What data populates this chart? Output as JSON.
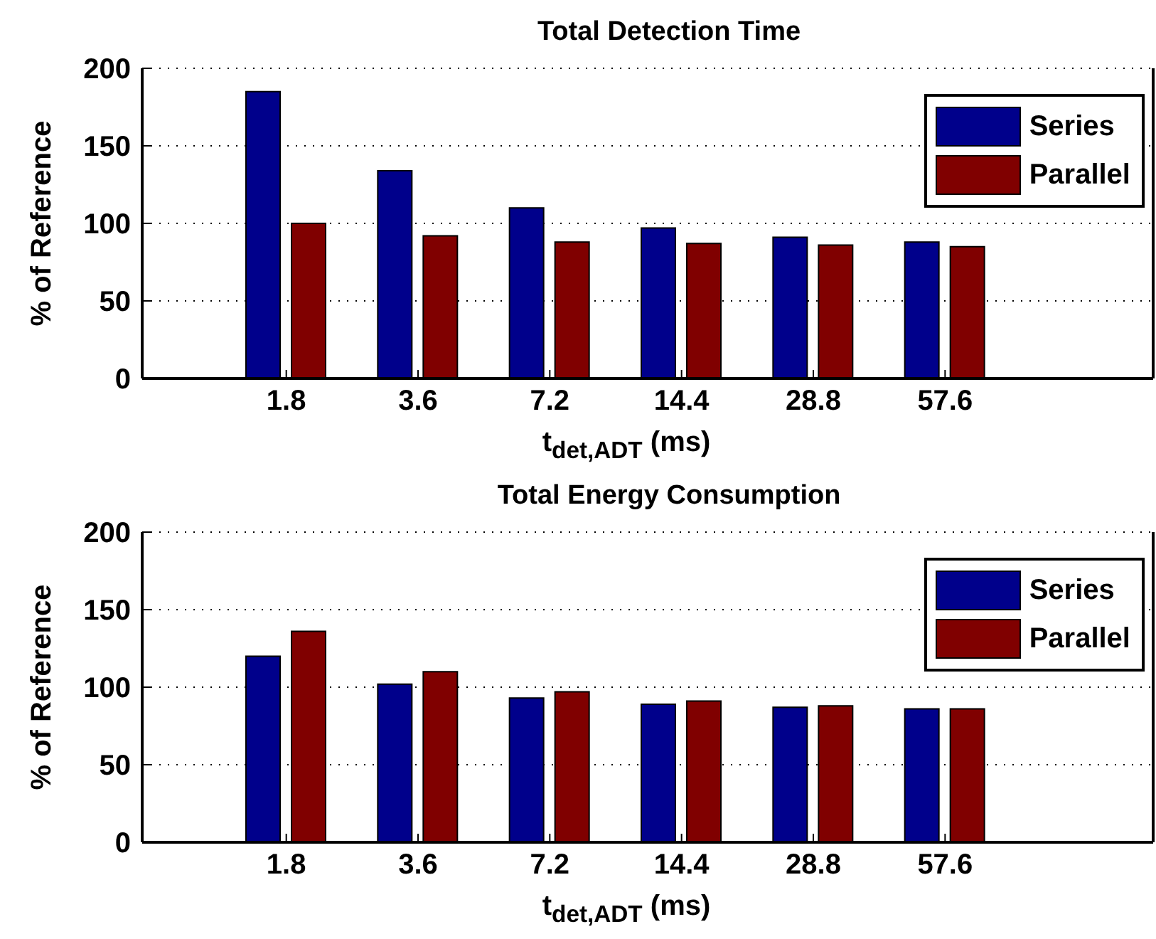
{
  "chart_data": [
    {
      "type": "bar",
      "title": "Total Detection Time",
      "xlabel": "t$_{det,ADT}$ (ms)",
      "ylabel": "% of Reference",
      "categories": [
        "1.8",
        "3.6",
        "7.2",
        "14.4",
        "28.8",
        "57.6"
      ],
      "series": [
        {
          "name": "Series",
          "color": "#00008b",
          "values": [
            185,
            134,
            110,
            97,
            91,
            88
          ]
        },
        {
          "name": "Parallel",
          "color": "#800000",
          "values": [
            100,
            92,
            88,
            87,
            86,
            85
          ]
        }
      ],
      "ylim": [
        0,
        200
      ],
      "yticks": [
        0,
        50,
        100,
        150,
        200
      ],
      "grid": "y",
      "legend": "top right"
    },
    {
      "type": "bar",
      "title": "Total Energy Consumption",
      "xlabel": "t$_{det,ADT}$ (ms)",
      "ylabel": "% of Reference",
      "categories": [
        "1.8",
        "3.6",
        "7.2",
        "14.4",
        "28.8",
        "57.6"
      ],
      "series": [
        {
          "name": "Series",
          "color": "#00008b",
          "values": [
            120,
            102,
            93,
            89,
            87,
            86
          ]
        },
        {
          "name": "Parallel",
          "color": "#800000",
          "values": [
            136,
            110,
            97,
            91,
            88,
            86
          ]
        }
      ],
      "ylim": [
        0,
        200
      ],
      "yticks": [
        0,
        50,
        100,
        150,
        200
      ],
      "grid": "y",
      "legend": "top right"
    }
  ]
}
